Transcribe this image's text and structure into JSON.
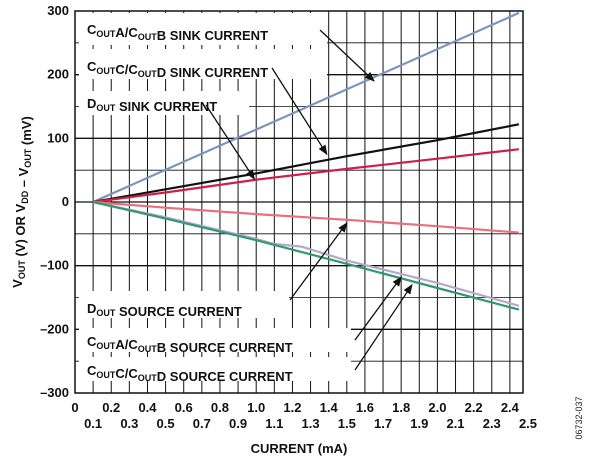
{
  "chart_data": {
    "type": "line",
    "xlabel": "CURRENT (mA)",
    "ylabel": {
      "parts": [
        {
          "t": "V"
        },
        {
          "t": "OUT",
          "sub": true
        },
        {
          "t": " (V) OR V"
        },
        {
          "t": "DD",
          "sub": true
        },
        {
          "t": " – V"
        },
        {
          "t": "OUT",
          "sub": true
        },
        {
          "t": " (mV)"
        }
      ]
    },
    "xlim": [
      0,
      2.5
    ],
    "ylim": [
      -300,
      300
    ],
    "grid": true,
    "x_ticks_row1": [
      "0",
      "0.2",
      "0.4",
      "0.6",
      "0.8",
      "1.0",
      "1.2",
      "1.4",
      "1.6",
      "1.8",
      "2.0",
      "2.2",
      "2.4"
    ],
    "x_ticks_row2": [
      "0.1",
      "0.3",
      "0.5",
      "0.7",
      "0.9",
      "1.1",
      "1.3",
      "1.5",
      "1.7",
      "1.9",
      "2.1",
      "2.3",
      "2.5"
    ],
    "y_ticks": [
      "300",
      "200",
      "100",
      "0",
      "–100",
      "–200",
      "–300"
    ],
    "series": [
      {
        "id": "s1",
        "color": "#7a96bc",
        "x": [
          0.1,
          2.45
        ],
        "y": [
          0,
          297
        ]
      },
      {
        "id": "s2",
        "color": "#111111",
        "x": [
          0.1,
          0.5,
          1.0,
          1.5,
          2.0,
          2.45
        ],
        "y": [
          0,
          20,
          45,
          72,
          97,
          122
        ]
      },
      {
        "id": "s3",
        "color": "#cc1f47",
        "x": [
          0.1,
          0.5,
          1.0,
          1.5,
          2.0,
          2.45
        ],
        "y": [
          0,
          15,
          35,
          52,
          68,
          83
        ]
      },
      {
        "id": "s4",
        "color": "#e86f80",
        "x": [
          0.1,
          0.5,
          1.0,
          1.5,
          2.0,
          2.45
        ],
        "y": [
          0,
          -9,
          -19,
          -28,
          -38,
          -48
        ]
      },
      {
        "id": "s5",
        "color": "#b8a6cf",
        "x": [
          0.1,
          0.5,
          1.0,
          1.1,
          1.25,
          1.5,
          2.0,
          2.45
        ],
        "y": [
          0,
          -24,
          -58,
          -66,
          -70,
          -92,
          -127,
          -163
        ]
      },
      {
        "id": "s6",
        "color": "#2f9a6d",
        "x": [
          0.1,
          0.5,
          1.0,
          1.5,
          2.0,
          2.45
        ],
        "y": [
          0,
          -26,
          -60,
          -97,
          -135,
          -169
        ]
      }
    ],
    "annotations": [
      {
        "id": "a1",
        "parts": [
          {
            "t": "C"
          },
          {
            "t": "OUT",
            "sub": true
          },
          {
            "t": "A/C"
          },
          {
            "t": "OUT",
            "sub": true
          },
          {
            "t": "B SINK CURRENT"
          }
        ],
        "arrow_to": [
          1.65,
          190
        ]
      },
      {
        "id": "a2",
        "parts": [
          {
            "t": "C"
          },
          {
            "t": "OUT",
            "sub": true
          },
          {
            "t": "C/C"
          },
          {
            "t": "OUT",
            "sub": true
          },
          {
            "t": "D SINK CURRENT"
          }
        ],
        "arrow_to": [
          1.39,
          75
        ]
      },
      {
        "id": "a3",
        "parts": [
          {
            "t": "D"
          },
          {
            "t": "OUT",
            "sub": true
          },
          {
            "t": " SINK CURRENT"
          }
        ],
        "arrow_to": [
          0.99,
          36
        ]
      },
      {
        "id": "a4",
        "parts": [
          {
            "t": "D"
          },
          {
            "t": "OUT",
            "sub": true
          },
          {
            "t": " SOURCE CURRENT"
          }
        ],
        "arrow_to": [
          1.5,
          -33
        ]
      },
      {
        "id": "a5",
        "parts": [
          {
            "t": "C"
          },
          {
            "t": "OUT",
            "sub": true
          },
          {
            "t": "A/C"
          },
          {
            "t": "OUT",
            "sub": true
          },
          {
            "t": "B SOURCE CURRENT"
          }
        ],
        "arrow_to": [
          1.8,
          -118
        ]
      },
      {
        "id": "a6",
        "parts": [
          {
            "t": "C"
          },
          {
            "t": "OUT",
            "sub": true
          },
          {
            "t": "C/C"
          },
          {
            "t": "OUT",
            "sub": true
          },
          {
            "t": "D SOURCE CURRENT"
          }
        ],
        "arrow_to": [
          1.86,
          -130
        ]
      }
    ]
  },
  "figure_id": "06732-037"
}
